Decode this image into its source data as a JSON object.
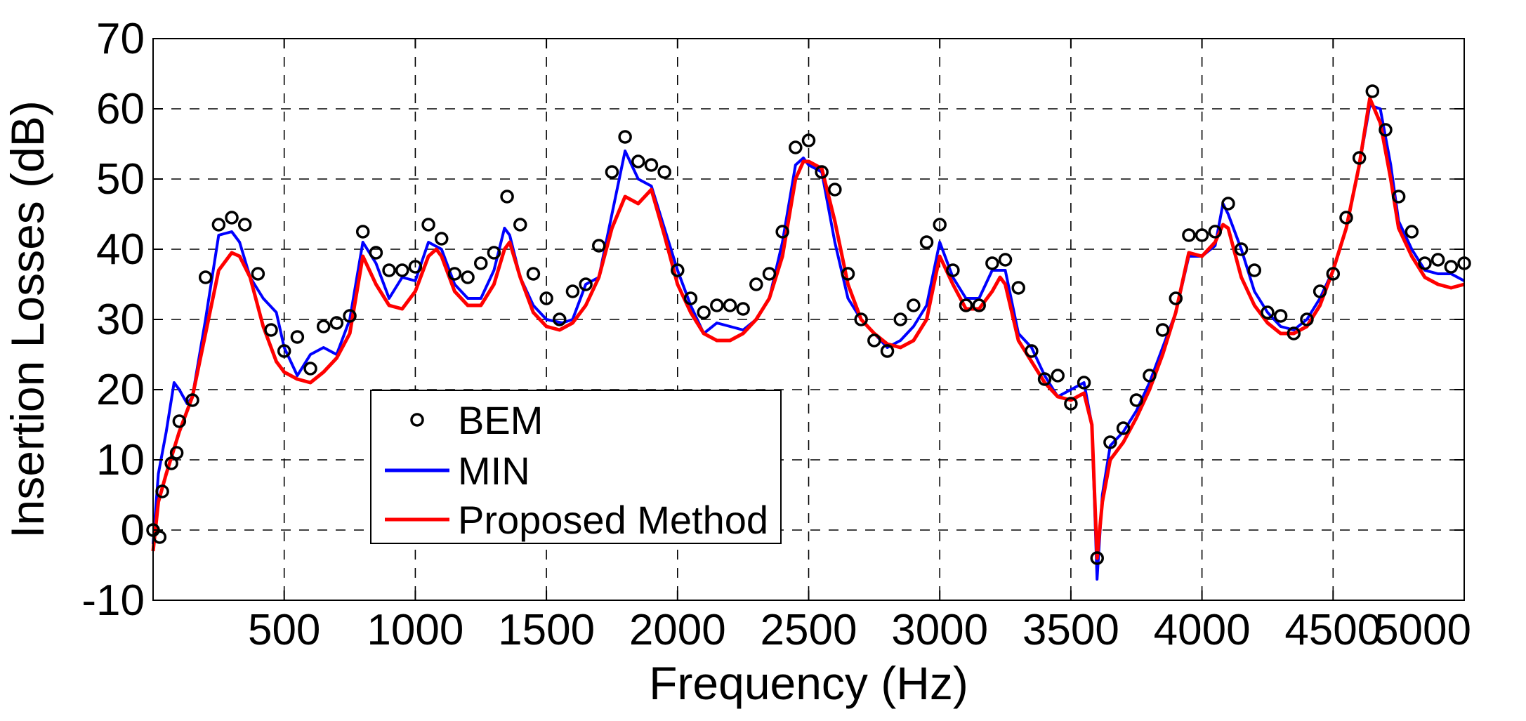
{
  "chart_data": {
    "type": "line",
    "title": "",
    "xlabel": "Frequency (Hz)",
    "ylabel": "Insertion Losses (dB)",
    "xlim": [
      0,
      5000
    ],
    "ylim": [
      -10,
      70
    ],
    "xticks": [
      500,
      1000,
      1500,
      2000,
      2500,
      3000,
      3500,
      4000,
      4500,
      5000
    ],
    "xtick_labels": [
      "500",
      "1000",
      "1500",
      "2000",
      "2500",
      "3000",
      "3500",
      "4000",
      "4500",
      "5000"
    ],
    "yticks": [
      -10,
      0,
      10,
      20,
      30,
      40,
      50,
      60,
      70
    ],
    "ytick_labels": [
      "-10",
      "0",
      "10",
      "20",
      "30",
      "40",
      "50",
      "60",
      "70"
    ],
    "grid": true,
    "legend": {
      "placement": "lower-left",
      "entries": [
        "BEM",
        "MIN",
        "Proposed Method"
      ]
    },
    "series": [
      {
        "name": "BEM",
        "style": "markers",
        "color": "#000000",
        "x": [
          0,
          25,
          35,
          70,
          90,
          100,
          150,
          200,
          250,
          300,
          350,
          400,
          450,
          500,
          550,
          600,
          650,
          700,
          750,
          800,
          850,
          900,
          950,
          1000,
          1050,
          1100,
          1150,
          1200,
          1250,
          1300,
          1350,
          1400,
          1450,
          1500,
          1550,
          1600,
          1650,
          1700,
          1750,
          1800,
          1850,
          1900,
          1950,
          2000,
          2050,
          2100,
          2150,
          2200,
          2250,
          2300,
          2350,
          2400,
          2450,
          2500,
          2550,
          2600,
          2650,
          2700,
          2750,
          2800,
          2850,
          2900,
          2950,
          3000,
          3050,
          3100,
          3150,
          3200,
          3250,
          3300,
          3350,
          3400,
          3450,
          3500,
          3550,
          3600,
          3650,
          3700,
          3750,
          3800,
          3850,
          3900,
          3950,
          4000,
          4050,
          4100,
          4150,
          4200,
          4250,
          4300,
          4350,
          4400,
          4450,
          4500,
          4550,
          4600,
          4650,
          4700,
          4750,
          4800,
          4850,
          4900,
          4950,
          5000
        ],
        "y": [
          0,
          -1,
          5.5,
          9.5,
          11,
          15.5,
          18.5,
          36,
          43.5,
          44.5,
          43.5,
          36.5,
          28.5,
          25.5,
          27.5,
          23,
          29,
          29.5,
          30.5,
          42.5,
          39.5,
          37,
          37,
          37.5,
          43.5,
          41.5,
          36.5,
          36,
          38,
          39.5,
          47.5,
          43.5,
          36.5,
          33,
          30,
          34,
          35,
          40.5,
          51,
          56,
          52.5,
          52,
          51,
          37,
          33,
          31,
          32,
          32,
          31.5,
          35,
          36.5,
          42.5,
          54.5,
          55.5,
          51,
          48.5,
          36.5,
          30,
          27,
          25.5,
          30,
          32,
          41,
          43.5,
          37,
          32,
          32,
          38,
          38.5,
          34.5,
          25.5,
          21.5,
          22,
          18,
          21,
          -4,
          12.5,
          14.5,
          18.5,
          22,
          28.5,
          33,
          42,
          42,
          42.5,
          46.5,
          40,
          37,
          31,
          30.5,
          28,
          30,
          34,
          36.5,
          44.5,
          53,
          62.5,
          57,
          47.5,
          42.5,
          38,
          38.5,
          37.5,
          38
        ]
      },
      {
        "name": "MIN",
        "style": "line",
        "color": "#0000ff",
        "x": [
          0,
          20,
          50,
          80,
          100,
          130,
          150,
          200,
          250,
          300,
          330,
          370,
          420,
          470,
          500,
          550,
          600,
          650,
          700,
          750,
          800,
          850,
          900,
          950,
          1000,
          1050,
          1100,
          1150,
          1200,
          1250,
          1300,
          1340,
          1360,
          1400,
          1450,
          1500,
          1560,
          1600,
          1650,
          1700,
          1750,
          1800,
          1850,
          1900,
          1950,
          2000,
          2050,
          2100,
          2150,
          2200,
          2250,
          2300,
          2350,
          2400,
          2450,
          2480,
          2500,
          2550,
          2600,
          2650,
          2700,
          2750,
          2800,
          2850,
          2900,
          2950,
          3000,
          3050,
          3100,
          3150,
          3200,
          3250,
          3300,
          3350,
          3400,
          3450,
          3500,
          3550,
          3580,
          3600,
          3620,
          3650,
          3700,
          3750,
          3800,
          3850,
          3900,
          3950,
          4000,
          4050,
          4080,
          4100,
          4150,
          4200,
          4250,
          4300,
          4350,
          4400,
          4450,
          4500,
          4550,
          4600,
          4640,
          4680,
          4720,
          4750,
          4800,
          4850,
          4900,
          4950,
          5000
        ],
        "y": [
          -2,
          8,
          14,
          21,
          20,
          18,
          19,
          30,
          42,
          42.5,
          41,
          36,
          33,
          31,
          26,
          22,
          25,
          26,
          25,
          30,
          41,
          38,
          33,
          36,
          35.5,
          41,
          40,
          35,
          33,
          33,
          37,
          43,
          42,
          36,
          32,
          30,
          29.5,
          30,
          35,
          36,
          45,
          54,
          50,
          49,
          43,
          37,
          32,
          28,
          29.5,
          29,
          28.5,
          30,
          33,
          41,
          52,
          53,
          52,
          51,
          41,
          33,
          30,
          28,
          26,
          27,
          29,
          32,
          41,
          36,
          33,
          33,
          37,
          37,
          28,
          26,
          22,
          19,
          20,
          21,
          15,
          -7,
          5,
          12,
          14,
          17,
          21,
          26,
          31,
          39,
          39,
          40.5,
          46.5,
          45,
          40,
          34,
          31,
          29,
          28.5,
          30,
          33,
          37,
          43,
          52,
          60.5,
          60,
          52,
          44,
          40,
          37,
          36.5,
          36.5,
          35.5
        ]
      },
      {
        "name": "Proposed Method",
        "style": "line",
        "color": "#ff0000",
        "x": [
          0,
          20,
          50,
          100,
          150,
          200,
          250,
          300,
          330,
          370,
          420,
          470,
          500,
          550,
          600,
          650,
          700,
          750,
          800,
          850,
          900,
          950,
          1000,
          1050,
          1080,
          1100,
          1150,
          1200,
          1250,
          1300,
          1340,
          1360,
          1400,
          1450,
          1500,
          1550,
          1600,
          1650,
          1700,
          1750,
          1800,
          1850,
          1900,
          1950,
          2000,
          2050,
          2100,
          2150,
          2200,
          2250,
          2300,
          2350,
          2400,
          2450,
          2480,
          2500,
          2550,
          2600,
          2650,
          2700,
          2750,
          2800,
          2850,
          2900,
          2950,
          3000,
          3050,
          3100,
          3150,
          3200,
          3230,
          3250,
          3300,
          3350,
          3400,
          3450,
          3500,
          3550,
          3580,
          3600,
          3620,
          3650,
          3700,
          3750,
          3800,
          3850,
          3900,
          3950,
          4000,
          4050,
          4080,
          4100,
          4150,
          4200,
          4250,
          4300,
          4350,
          4400,
          4450,
          4500,
          4550,
          4600,
          4640,
          4680,
          4720,
          4750,
          4800,
          4850,
          4900,
          4950,
          5000
        ],
        "y": [
          -3,
          4,
          8,
          14,
          19,
          28,
          37,
          39.5,
          39,
          36,
          29,
          24,
          22.5,
          21.5,
          21,
          22.5,
          24.5,
          28,
          39,
          35,
          32,
          31.5,
          34,
          39,
          40,
          39,
          34,
          32,
          32,
          35,
          40,
          41,
          36,
          31,
          29,
          28.5,
          29.5,
          32,
          36,
          43,
          47.5,
          46.5,
          48.5,
          42,
          35,
          31,
          28,
          27,
          27,
          28,
          30,
          33,
          39,
          50,
          52.5,
          52.5,
          51.5,
          44,
          35,
          30,
          28,
          26.5,
          26,
          27,
          30,
          39,
          35,
          31.5,
          31.5,
          34,
          36,
          35,
          27,
          24,
          21,
          19,
          18.5,
          19.5,
          15,
          -4,
          4,
          10,
          12.5,
          16,
          20,
          25,
          31,
          39.5,
          39,
          41,
          43.5,
          43,
          36,
          32,
          29.5,
          28,
          28,
          29,
          32,
          37,
          43,
          52,
          61.5,
          58,
          50,
          43,
          39,
          36,
          35,
          34.5,
          35
        ]
      }
    ]
  }
}
